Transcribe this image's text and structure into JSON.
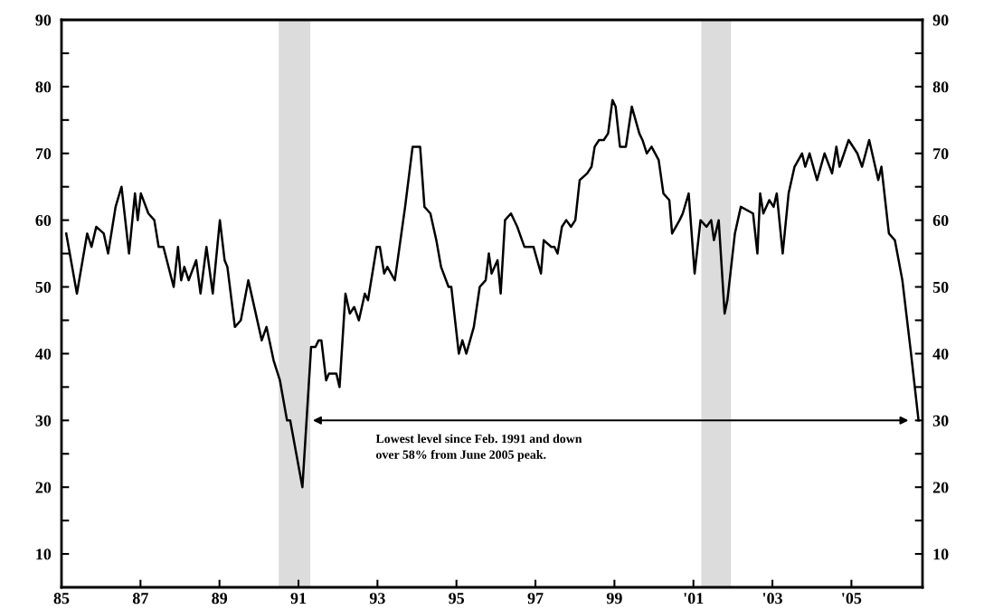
{
  "chart_data": {
    "type": "line",
    "x": [
      1985.12,
      1985.39,
      1985.65,
      1985.76,
      1985.88,
      1986.07,
      1986.18,
      1986.37,
      1986.52,
      1986.71,
      1986.86,
      1986.93,
      1987.01,
      1987.2,
      1987.35,
      1987.46,
      1987.58,
      1987.84,
      1987.95,
      1988.03,
      1988.11,
      1988.22,
      1988.41,
      1988.52,
      1988.67,
      1988.83,
      1989.01,
      1989.13,
      1989.2,
      1989.39,
      1989.54,
      1989.73,
      1990.07,
      1990.19,
      1990.37,
      1990.53,
      1990.71,
      1990.79,
      1991.1,
      1991.32,
      1991.43,
      1991.51,
      1991.58,
      1991.7,
      1991.77,
      1991.96,
      1992.04,
      1992.19,
      1992.3,
      1992.41,
      1992.53,
      1992.68,
      1992.76,
      1992.98,
      1993.06,
      1993.17,
      1993.25,
      1993.44,
      1993.7,
      1993.89,
      1994.0,
      1994.08,
      1994.19,
      1994.34,
      1994.49,
      1994.61,
      1994.8,
      1994.87,
      1995.06,
      1995.15,
      1995.25,
      1995.44,
      1995.59,
      1995.74,
      1995.82,
      1995.89,
      1996.04,
      1996.12,
      1996.23,
      1996.38,
      1996.54,
      1996.72,
      1996.8,
      1996.87,
      1996.95,
      1997.14,
      1997.21,
      1997.4,
      1997.48,
      1997.56,
      1997.67,
      1997.78,
      1997.9,
      1998.01,
      1998.12,
      1998.31,
      1998.42,
      1998.5,
      1998.61,
      1998.73,
      1998.84,
      1998.95,
      1999.03,
      1999.14,
      1999.29,
      1999.44,
      1999.63,
      1999.71,
      1999.82,
      1999.94,
      2000.12,
      2000.24,
      2000.39,
      2000.46,
      2000.65,
      2000.73,
      2000.88,
      2001.03,
      2001.18,
      2001.33,
      2001.45,
      2001.52,
      2001.64,
      2001.79,
      2001.86,
      2002.05,
      2002.2,
      2002.51,
      2002.62,
      2002.69,
      2002.77,
      2002.92,
      2003.03,
      2003.11,
      2003.26,
      2003.41,
      2003.56,
      2003.75,
      2003.83,
      2003.94,
      2004.13,
      2004.32,
      2004.51,
      2004.62,
      2004.7,
      2004.93,
      2005.15,
      2005.27,
      2005.45,
      2005.68,
      2005.76,
      2005.95,
      2006.1,
      2006.29,
      2006.51,
      2006.7
    ],
    "series": [
      {
        "color": "#000000",
        "values": [
          58,
          49,
          58,
          56,
          59,
          58,
          55,
          62,
          65,
          55,
          64,
          60,
          64,
          61,
          60,
          56,
          56,
          50,
          56,
          51,
          53,
          51,
          54,
          49,
          56,
          49,
          60,
          54,
          53,
          44,
          45,
          51,
          42,
          44,
          39,
          36,
          30,
          30,
          20,
          41,
          41,
          42,
          42,
          36,
          37,
          37,
          35,
          49,
          46,
          47,
          45,
          49,
          48,
          56,
          56,
          52,
          53,
          51,
          62,
          71,
          71,
          71,
          62,
          61,
          57,
          53,
          50,
          50,
          40,
          42,
          40,
          44,
          50,
          51,
          55,
          52,
          54,
          49,
          60,
          61,
          59,
          56,
          56,
          56,
          56,
          52,
          57,
          56,
          56,
          55,
          59,
          60,
          59,
          60,
          66,
          67,
          68,
          71,
          72,
          72,
          73,
          78,
          77,
          71,
          71,
          77,
          73,
          72,
          70,
          71,
          69,
          64,
          63,
          58,
          60,
          61,
          64,
          52,
          60,
          59,
          60,
          57,
          60,
          46,
          48,
          58,
          62,
          61,
          55,
          64,
          61,
          63,
          62,
          64,
          55,
          64,
          68,
          70,
          68,
          70,
          66,
          70,
          67,
          71,
          68,
          72,
          70,
          68,
          72,
          66,
          68,
          58,
          57,
          51,
          40,
          30
        ]
      }
    ],
    "xlim": [
      1985,
      2006.8
    ],
    "xticks": [
      {
        "value": 1985,
        "label": "85"
      },
      {
        "value": 1987,
        "label": "87"
      },
      {
        "value": 1989,
        "label": "89"
      },
      {
        "value": 1991,
        "label": "91"
      },
      {
        "value": 1993,
        "label": "93"
      },
      {
        "value": 1995,
        "label": "95"
      },
      {
        "value": 1997,
        "label": "97"
      },
      {
        "value": 1999,
        "label": "99"
      },
      {
        "value": 2001,
        "label": "'01"
      },
      {
        "value": 2003,
        "label": "'03"
      },
      {
        "value": 2005,
        "label": "'05"
      }
    ],
    "ylim": [
      5,
      90
    ],
    "yticks": [
      10,
      {
        "value": 15,
        "label": null
      },
      20,
      {
        "value": 25,
        "label": null
      },
      30,
      {
        "value": 35,
        "label": null
      },
      40,
      {
        "value": 45,
        "label": null
      },
      50,
      {
        "value": 55,
        "label": null
      },
      60,
      {
        "value": 65,
        "label": null
      },
      70,
      {
        "value": 75,
        "label": null
      },
      80,
      {
        "value": 85,
        "label": null
      },
      90
    ],
    "y2lim": [
      5,
      90
    ],
    "y2ticks": [
      10,
      {
        "value": 15,
        "label": null
      },
      20,
      {
        "value": 25,
        "label": null
      },
      30,
      {
        "value": 35,
        "label": null
      },
      40,
      {
        "value": 45,
        "label": null
      },
      50,
      {
        "value": 55,
        "label": null
      },
      60,
      {
        "value": 65,
        "label": null
      },
      70,
      {
        "value": 75,
        "label": null
      },
      80,
      {
        "value": 85,
        "label": null
      },
      90
    ],
    "bands": [
      {
        "axis": "x",
        "from": 1990.5,
        "to": 1991.3,
        "color": "#dcdcdc"
      },
      {
        "axis": "x",
        "from": 2001.2,
        "to": 2001.95,
        "color": "#dcdcdc"
      }
    ],
    "annotations": [
      "Lowest level since Feb. 1991 and down\nover 58% from June 2005 peak."
    ],
    "grid": false,
    "marker": "none",
    "line_style": "solid"
  }
}
